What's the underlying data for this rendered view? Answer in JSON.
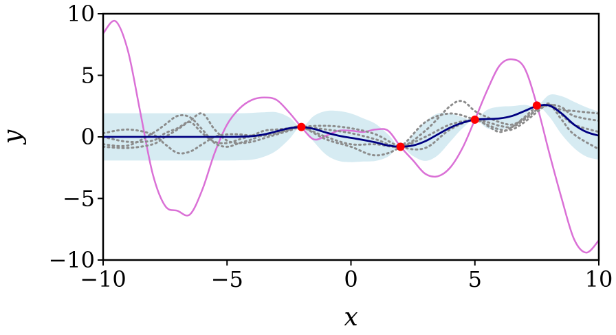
{
  "chart_data": {
    "type": "line",
    "title": "",
    "xlabel": "x",
    "ylabel": "y",
    "xlim": [
      -10,
      10
    ],
    "ylim": [
      -10,
      10
    ],
    "xticks": [
      -10,
      -5,
      0,
      5,
      10
    ],
    "yticks": [
      -10,
      -5,
      0,
      5,
      10
    ],
    "xtick_labels": [
      "−10",
      "−5",
      "0",
      "5",
      "10"
    ],
    "ytick_labels": [
      "−10",
      "−5",
      "0",
      "5",
      "10"
    ],
    "grid": false,
    "legend": "none",
    "colors": {
      "true_function": "#da70d6",
      "mean": "#000080",
      "band": "#add8e6",
      "samples": "#8c8c8c",
      "observations": "#ff0000"
    },
    "true_function": {
      "x": [
        -10,
        -9.5,
        -9,
        -8.5,
        -8,
        -7.5,
        -7,
        -6.5,
        -6,
        -5.5,
        -5,
        -4.5,
        -4,
        -3.5,
        -3,
        -2.5,
        -2,
        -1.5,
        -1,
        -0.5,
        0,
        0.5,
        1,
        1.5,
        2,
        2.5,
        3,
        3.5,
        4,
        4.5,
        5,
        5.5,
        6,
        6.5,
        7,
        7.5,
        8,
        8.5,
        9,
        9.5,
        10
      ],
      "y": [
        8.4,
        9.4,
        7.0,
        2.0,
        -3.0,
        -5.6,
        -6.0,
        -6.3,
        -4.3,
        -1.3,
        1.0,
        2.3,
        3.0,
        3.2,
        3.0,
        2.0,
        0.8,
        -0.2,
        0.1,
        0.5,
        0.5,
        0.4,
        0.6,
        0.5,
        -0.8,
        -1.9,
        -3.0,
        -3.2,
        -2.5,
        -0.9,
        1.4,
        3.8,
        5.8,
        6.3,
        5.6,
        2.6,
        -1.3,
        -5.0,
        -8.3,
        -9.4,
        -8.4
      ]
    },
    "mean": {
      "x": [
        -10,
        -9,
        -8,
        -7,
        -6,
        -5,
        -4.5,
        -4,
        -3.5,
        -3,
        -2.5,
        -2,
        -1.5,
        -1,
        -0.5,
        0,
        0.5,
        1,
        1.5,
        2,
        2.5,
        3,
        3.5,
        4,
        4.5,
        5,
        5.5,
        6,
        6.5,
        7,
        7.5,
        8,
        8.5,
        9,
        9.5,
        10
      ],
      "y": [
        0,
        0,
        0,
        0,
        0,
        0,
        0.01,
        0.06,
        0.2,
        0.45,
        0.7,
        0.8,
        0.65,
        0.35,
        0.1,
        -0.08,
        -0.25,
        -0.45,
        -0.7,
        -0.8,
        -0.7,
        -0.35,
        0.2,
        0.75,
        1.15,
        1.4,
        1.45,
        1.5,
        1.7,
        2.1,
        2.5,
        2.55,
        1.9,
        1.0,
        0.4,
        0.1
      ]
    },
    "band": {
      "x": [
        -10,
        -9,
        -8,
        -7,
        -6,
        -5,
        -4.5,
        -4,
        -3.5,
        -3,
        -2.5,
        -2,
        -1.5,
        -1,
        -0.5,
        0,
        0.5,
        1,
        1.5,
        2,
        2.5,
        3,
        3.5,
        4,
        4.5,
        5,
        5.5,
        6,
        6.5,
        7,
        7.5,
        8,
        8.5,
        9,
        9.5,
        10
      ],
      "lower": [
        -1.92,
        -1.92,
        -1.92,
        -1.92,
        -1.92,
        -1.92,
        -1.9,
        -1.85,
        -1.6,
        -1.1,
        -0.2,
        0.8,
        -0.4,
        -1.45,
        -1.95,
        -2.05,
        -2.0,
        -1.95,
        -1.6,
        -0.8,
        -1.55,
        -1.95,
        -1.5,
        -0.4,
        0.7,
        1.4,
        0.7,
        0.55,
        0.9,
        1.6,
        2.5,
        1.65,
        0.2,
        -0.9,
        -1.6,
        -1.85
      ],
      "upper": [
        1.92,
        1.92,
        1.92,
        1.92,
        1.92,
        1.92,
        1.92,
        1.95,
        2.0,
        2.0,
        1.6,
        0.8,
        1.7,
        2.1,
        2.1,
        1.9,
        1.5,
        1.05,
        0.2,
        -0.8,
        0.15,
        1.25,
        1.9,
        1.9,
        1.6,
        1.4,
        2.2,
        2.45,
        2.5,
        2.6,
        2.5,
        3.4,
        3.3,
        2.85,
        2.4,
        2.05
      ]
    },
    "samples": [
      {
        "x": [
          -10,
          -9,
          -8,
          -7.5,
          -7,
          -6.5,
          -6,
          -5.5,
          -5,
          -4.5,
          -4,
          -3.5,
          -3,
          -2.5,
          -2,
          -1,
          0,
          1,
          2,
          3,
          4,
          4.5,
          5,
          5.5,
          6,
          6.5,
          7,
          7.5,
          8,
          8.5,
          9,
          10
        ],
        "y": [
          -0.6,
          -0.7,
          0.3,
          1.0,
          1.7,
          1.6,
          0.6,
          -0.5,
          -0.8,
          -0.5,
          -0.2,
          0.2,
          0.4,
          0.6,
          0.8,
          0.6,
          0.3,
          -0.2,
          -0.8,
          0.5,
          2.5,
          2.9,
          2.1,
          1.6,
          1.2,
          1.0,
          1.5,
          2.2,
          2.6,
          2.4,
          1.7,
          1.3
        ]
      },
      {
        "x": [
          -10,
          -9,
          -8,
          -7.5,
          -7,
          -6.5,
          -6,
          -5.5,
          -5,
          -4.5,
          -4,
          -3.5,
          -3,
          -2.5,
          -2,
          -1,
          0,
          1,
          2,
          3,
          4,
          5,
          5.5,
          6,
          6.5,
          7,
          7.5,
          8,
          8.5,
          9,
          10
        ],
        "y": [
          0.3,
          0.6,
          0.2,
          -0.6,
          -1.3,
          -1.2,
          -0.6,
          0.0,
          0.2,
          0.2,
          0.1,
          0.1,
          0.3,
          0.6,
          0.8,
          -0.2,
          -0.8,
          -1.5,
          -0.8,
          1.2,
          1.9,
          1.4,
          1.0,
          0.6,
          0.6,
          1.2,
          2.0,
          2.6,
          1.4,
          0.2,
          -1.0
        ]
      },
      {
        "x": [
          -10,
          -9,
          -8,
          -7.5,
          -7,
          -6.5,
          -6,
          -5.5,
          -5,
          -4.5,
          -4,
          -3.5,
          -3,
          -2.5,
          -2,
          -1,
          0,
          1,
          2,
          3,
          4,
          5,
          5.5,
          6,
          6.5,
          7,
          7.5,
          8,
          8.5,
          9,
          10
        ],
        "y": [
          -0.8,
          -0.9,
          -0.6,
          0.0,
          0.6,
          1.3,
          1.9,
          0.6,
          -0.3,
          -0.5,
          -0.4,
          -0.1,
          0.2,
          0.5,
          0.8,
          0.9,
          0.7,
          0.2,
          -0.8,
          -0.9,
          0.6,
          1.4,
          0.9,
          0.4,
          0.8,
          1.6,
          2.4,
          2.5,
          2.2,
          2.1,
          1.9
        ]
      },
      {
        "x": [
          -10,
          -9,
          -8,
          -7.5,
          -7,
          -6.5,
          -6,
          -5.5,
          -5,
          -4.5,
          -4,
          -3.5,
          -3,
          -2.5,
          -2,
          -1,
          0,
          1,
          2,
          3,
          4,
          5,
          5.5,
          6,
          6.5,
          7,
          7.5,
          8,
          8.5,
          9,
          10
        ],
        "y": [
          0.0,
          -0.4,
          -0.3,
          0.3,
          0.7,
          1.2,
          0.3,
          -0.4,
          -0.5,
          -0.2,
          0.1,
          0.5,
          0.6,
          0.7,
          0.8,
          0.0,
          -0.6,
          -0.6,
          -0.8,
          0.0,
          1.0,
          1.4,
          1.2,
          0.9,
          0.8,
          1.4,
          2.2,
          2.7,
          1.8,
          1.0,
          0.4
        ]
      }
    ],
    "observations": {
      "x": [
        -2,
        2,
        5,
        7.5
      ],
      "y": [
        0.8,
        -0.8,
        1.4,
        2.55
      ]
    }
  }
}
